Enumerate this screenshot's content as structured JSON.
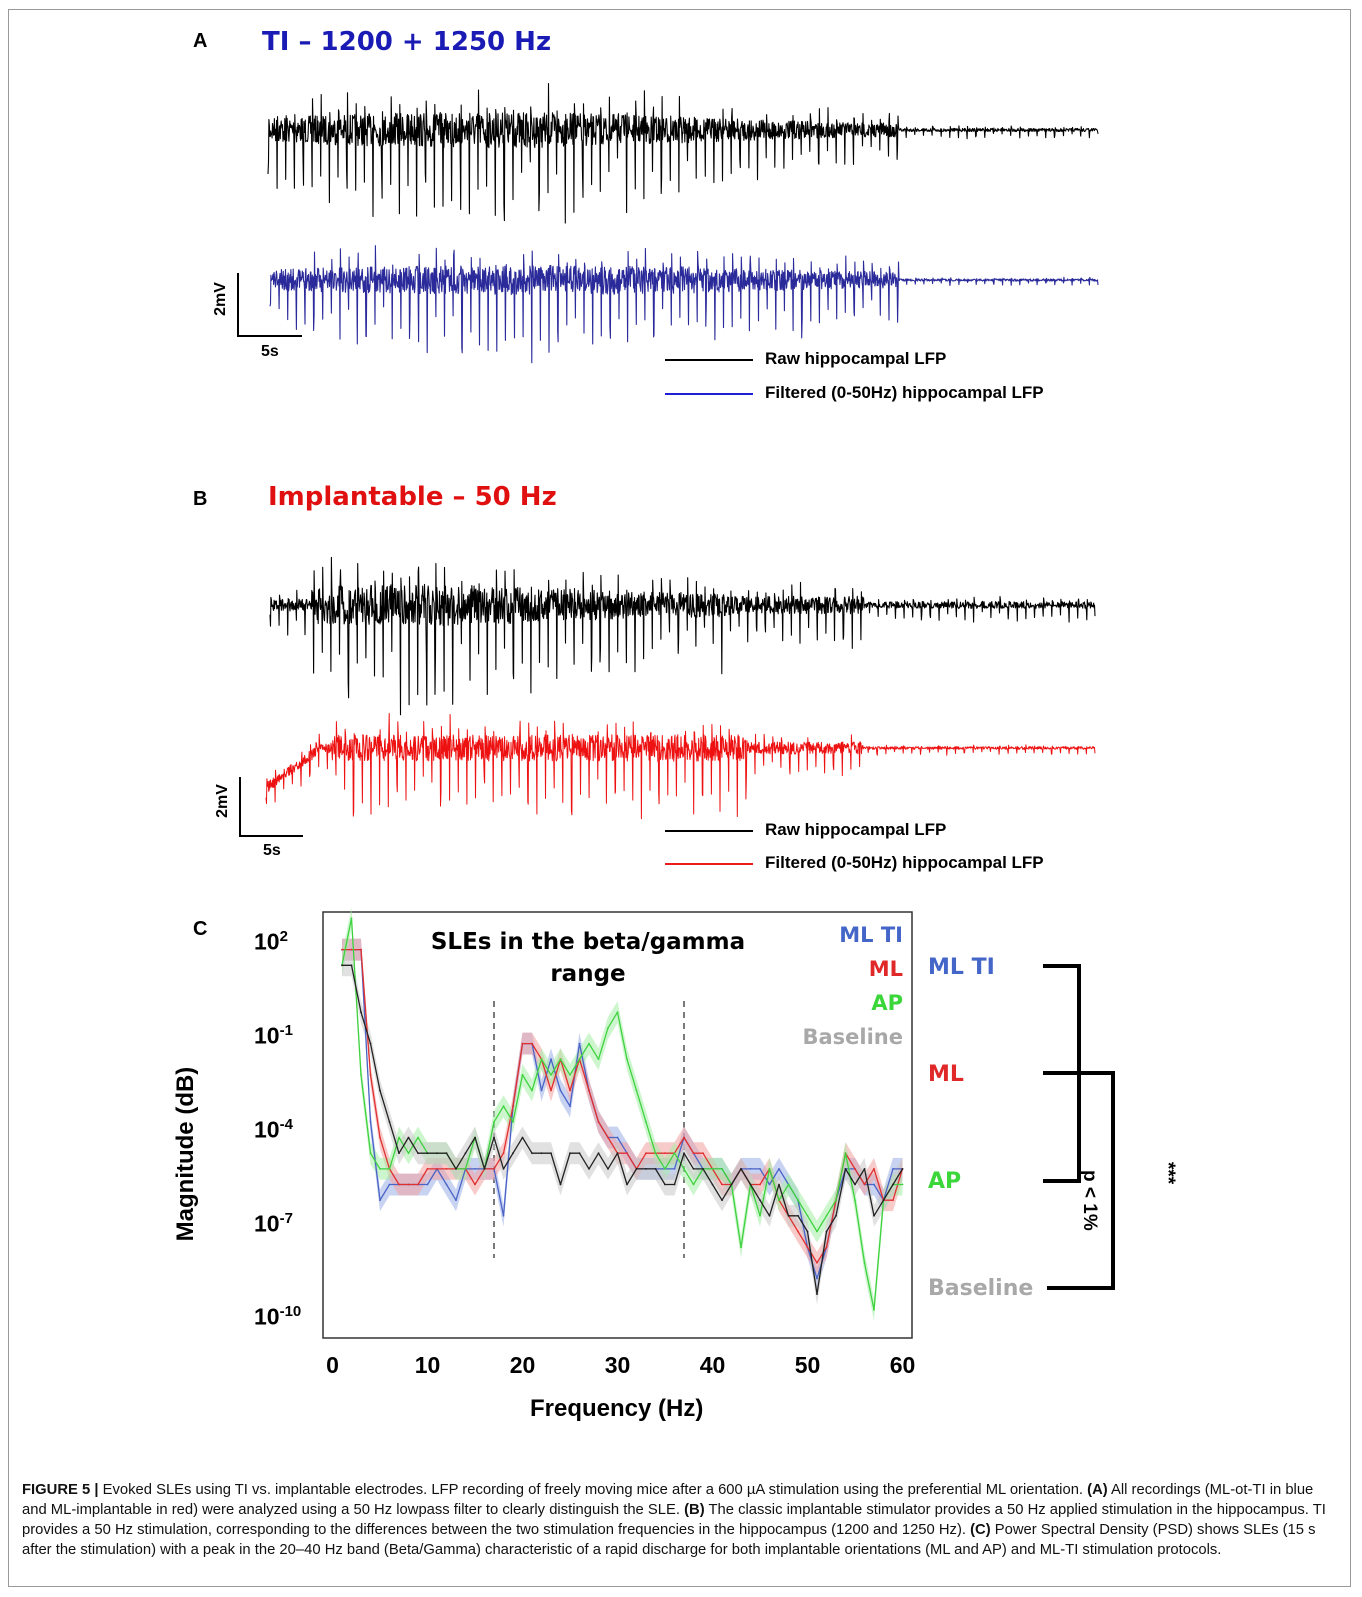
{
  "panel_a": {
    "letter": "A",
    "title": "TI – 1200 + 1250 Hz",
    "title_color": "#1a1ab4",
    "scale_y": "2mV",
    "scale_x": "5s",
    "legend": [
      {
        "label": "Raw hippocampal LFP",
        "color": "#000000"
      },
      {
        "label": "Filtered (0-50Hz) hippocampal LFP",
        "color": "#1f1fd6"
      }
    ],
    "trace_colors": {
      "raw": "#000000",
      "filtered": "#2a2a9a"
    }
  },
  "panel_b": {
    "letter": "B",
    "title": "Implantable – 50 Hz",
    "title_color": "#e01010",
    "scale_y": "2mV",
    "scale_x": "5s",
    "legend": [
      {
        "label": "Raw hippocampal LFP",
        "color": "#000000"
      },
      {
        "label": "Filtered (0-50Hz) hippocampal LFP",
        "color": "#e81c1c"
      }
    ],
    "trace_colors": {
      "raw": "#000000",
      "filtered": "#ee1111"
    }
  },
  "panel_c": {
    "letter": "C",
    "group_labels": [
      {
        "label": "ML TI",
        "color": "#4466c8"
      },
      {
        "label": "ML",
        "color": "#e02828"
      },
      {
        "label": "AP",
        "color": "#3ad63a"
      },
      {
        "label": "Baseline",
        "color": "#a8a8a8"
      }
    ],
    "significance_text": "p < 1%",
    "significance_stars": "***"
  },
  "chart_data": {
    "type": "line",
    "title": "SLEs in the beta/gamma range",
    "xlabel": "Frequency (Hz)",
    "ylabel": "Magnitude (dB)",
    "xlim": [
      -1,
      61
    ],
    "x_ticks": [
      0,
      10,
      20,
      30,
      40,
      50,
      60
    ],
    "x_tick_labels": [
      "0",
      "10",
      "20",
      "30",
      "40",
      "50",
      "60"
    ],
    "y_scale": "log",
    "ylim_log10": [
      -10.4,
      3.2
    ],
    "y_ticks_log10": [
      2,
      -1,
      -4,
      -7,
      -10
    ],
    "y_tick_labels": [
      {
        "base": "10",
        "exp": "2"
      },
      {
        "base": "10",
        "exp": "-1"
      },
      {
        "base": "10",
        "exp": "-4"
      },
      {
        "base": "10",
        "exp": "-7"
      },
      {
        "base": "10",
        "exp": "-10"
      }
    ],
    "band_lines_hz": [
      17,
      37
    ],
    "legend": [
      {
        "label": "ML TI",
        "color": "#4466c8"
      },
      {
        "label": "ML",
        "color": "#e02828"
      },
      {
        "label": "AP",
        "color": "#3ad63a"
      },
      {
        "label": "Baseline",
        "color": "#a8a8a8"
      }
    ],
    "legend_position": "top-right",
    "x": [
      1,
      2,
      3,
      4,
      5,
      6,
      7,
      8,
      9,
      10,
      11,
      12,
      13,
      14,
      15,
      16,
      17,
      18,
      19,
      20,
      21,
      22,
      23,
      24,
      25,
      26,
      27,
      28,
      29,
      30,
      31,
      32,
      33,
      34,
      35,
      36,
      37,
      38,
      39,
      40,
      41,
      42,
      43,
      44,
      45,
      46,
      47,
      48,
      49,
      50,
      51,
      52,
      53,
      54,
      55,
      56,
      57,
      58,
      59,
      60
    ],
    "series": [
      {
        "name": "ML TI",
        "color": "#4a63c6",
        "values": [
          2.0,
          2.0,
          2.0,
          -3.5,
          -6.0,
          -5.5,
          -5.5,
          -5.5,
          -5.5,
          -5.5,
          -5.0,
          -5.5,
          -6.0,
          -5.0,
          -5.0,
          -5.0,
          -5.0,
          -6.5,
          -3.0,
          -1.0,
          -1.0,
          -2.5,
          -1.5,
          -2.5,
          -3.0,
          -1.0,
          -2.5,
          -3.5,
          -4.0,
          -4.0,
          -4.5,
          -5.0,
          -5.0,
          -5.0,
          -5.0,
          -5.0,
          -4.0,
          -4.5,
          -5.0,
          -5.0,
          -5.0,
          -5.5,
          -5.0,
          -5.0,
          -5.0,
          -5.5,
          -5.0,
          -5.5,
          -6.0,
          -7.5,
          -8.5,
          -7.5,
          -6.0,
          -5.0,
          -5.0,
          -5.5,
          -5.5,
          -6.0,
          -5.0,
          -5.0
        ]
      },
      {
        "name": "ML",
        "color": "#e03030",
        "values": [
          2.0,
          2.0,
          2.0,
          -2.0,
          -4.0,
          -5.0,
          -5.5,
          -5.5,
          -5.5,
          -5.0,
          -5.0,
          -5.0,
          -5.0,
          -5.0,
          -5.5,
          -5.0,
          -5.0,
          -4.5,
          -3.0,
          -1.0,
          -1.0,
          -1.5,
          -2.5,
          -1.5,
          -2.5,
          -1.5,
          -2.5,
          -3.5,
          -4.0,
          -4.5,
          -4.5,
          -5.0,
          -4.5,
          -4.5,
          -4.5,
          -4.5,
          -4.0,
          -4.5,
          -4.5,
          -5.0,
          -5.5,
          -5.5,
          -5.0,
          -5.5,
          -5.5,
          -5.0,
          -6.0,
          -6.5,
          -7.0,
          -7.5,
          -8.0,
          -7.5,
          -6.0,
          -4.5,
          -5.0,
          -5.5,
          -5.0,
          -6.0,
          -6.0,
          -5.0
        ]
      },
      {
        "name": "AP",
        "color": "#3fd23f",
        "values": [
          1.5,
          3.0,
          -2.0,
          -4.5,
          -5.0,
          -5.0,
          -4.0,
          -4.5,
          -4.0,
          -4.5,
          -4.5,
          -4.5,
          -5.0,
          -5.0,
          -4.0,
          -5.0,
          -3.5,
          -3.0,
          -3.5,
          -2.0,
          -2.5,
          -1.5,
          -2.0,
          -1.5,
          -2.0,
          -1.5,
          -1.0,
          -1.5,
          -0.5,
          0.0,
          -1.5,
          -2.5,
          -3.5,
          -4.5,
          -5.0,
          -4.5,
          -5.0,
          -5.5,
          -5.0,
          -5.0,
          -5.0,
          -5.5,
          -7.5,
          -5.5,
          -6.5,
          -5.0,
          -6.0,
          -5.5,
          -6.0,
          -6.5,
          -7.0,
          -6.5,
          -6.0,
          -4.5,
          -6.0,
          -8.0,
          -9.5,
          -6.0,
          -5.5,
          -5.5
        ]
      },
      {
        "name": "Baseline",
        "color": "#222222",
        "values": [
          1.5,
          1.5,
          0.0,
          -1.0,
          -2.5,
          -3.5,
          -4.5,
          -4.0,
          -4.5,
          -4.5,
          -4.5,
          -4.5,
          -5.0,
          -4.5,
          -4.0,
          -5.0,
          -4.0,
          -5.0,
          -4.5,
          -4.0,
          -4.5,
          -4.5,
          -4.5,
          -5.5,
          -4.5,
          -4.5,
          -5.0,
          -4.5,
          -5.0,
          -4.5,
          -5.5,
          -5.0,
          -5.0,
          -5.0,
          -5.5,
          -5.5,
          -4.5,
          -5.0,
          -5.0,
          -5.5,
          -6.0,
          -5.5,
          -5.0,
          -5.5,
          -6.0,
          -6.5,
          -5.5,
          -6.5,
          -6.5,
          -7.0,
          -9.0,
          -7.0,
          -6.5,
          -5.0,
          -5.5,
          -5.0,
          -6.5,
          -6.0,
          -5.5,
          -5.0
        ]
      }
    ]
  },
  "caption": {
    "figure_label": "FIGURE 5 |",
    "intro": " Evoked SLEs using TI vs. implantable electrodes. LFP recording of freely moving mice after a 600 µA stimulation using the preferential ML orientation. ",
    "a_label": "(A)",
    "a_text": " All recordings (ML-ot-TI in blue and ML-implantable in red) were analyzed using a 50 Hz lowpass filter to clearly distinguish the SLE. ",
    "b_label": "(B)",
    "b_text": " The classic implantable stimulator provides a 50 Hz applied stimulation in the hippocampus. TI provides a 50 Hz stimulation, corresponding to the differences between the two stimulation frequencies in the hippocampus (1200 and 1250 Hz). ",
    "c_label": "(C)",
    "c_text": " Power Spectral Density (PSD) shows SLEs (15 s after the stimulation) with a peak in the 20–40 Hz band (Beta/Gamma) characteristic of a rapid discharge for both implantable orientations (ML and AP) and ML-TI stimulation protocols."
  }
}
